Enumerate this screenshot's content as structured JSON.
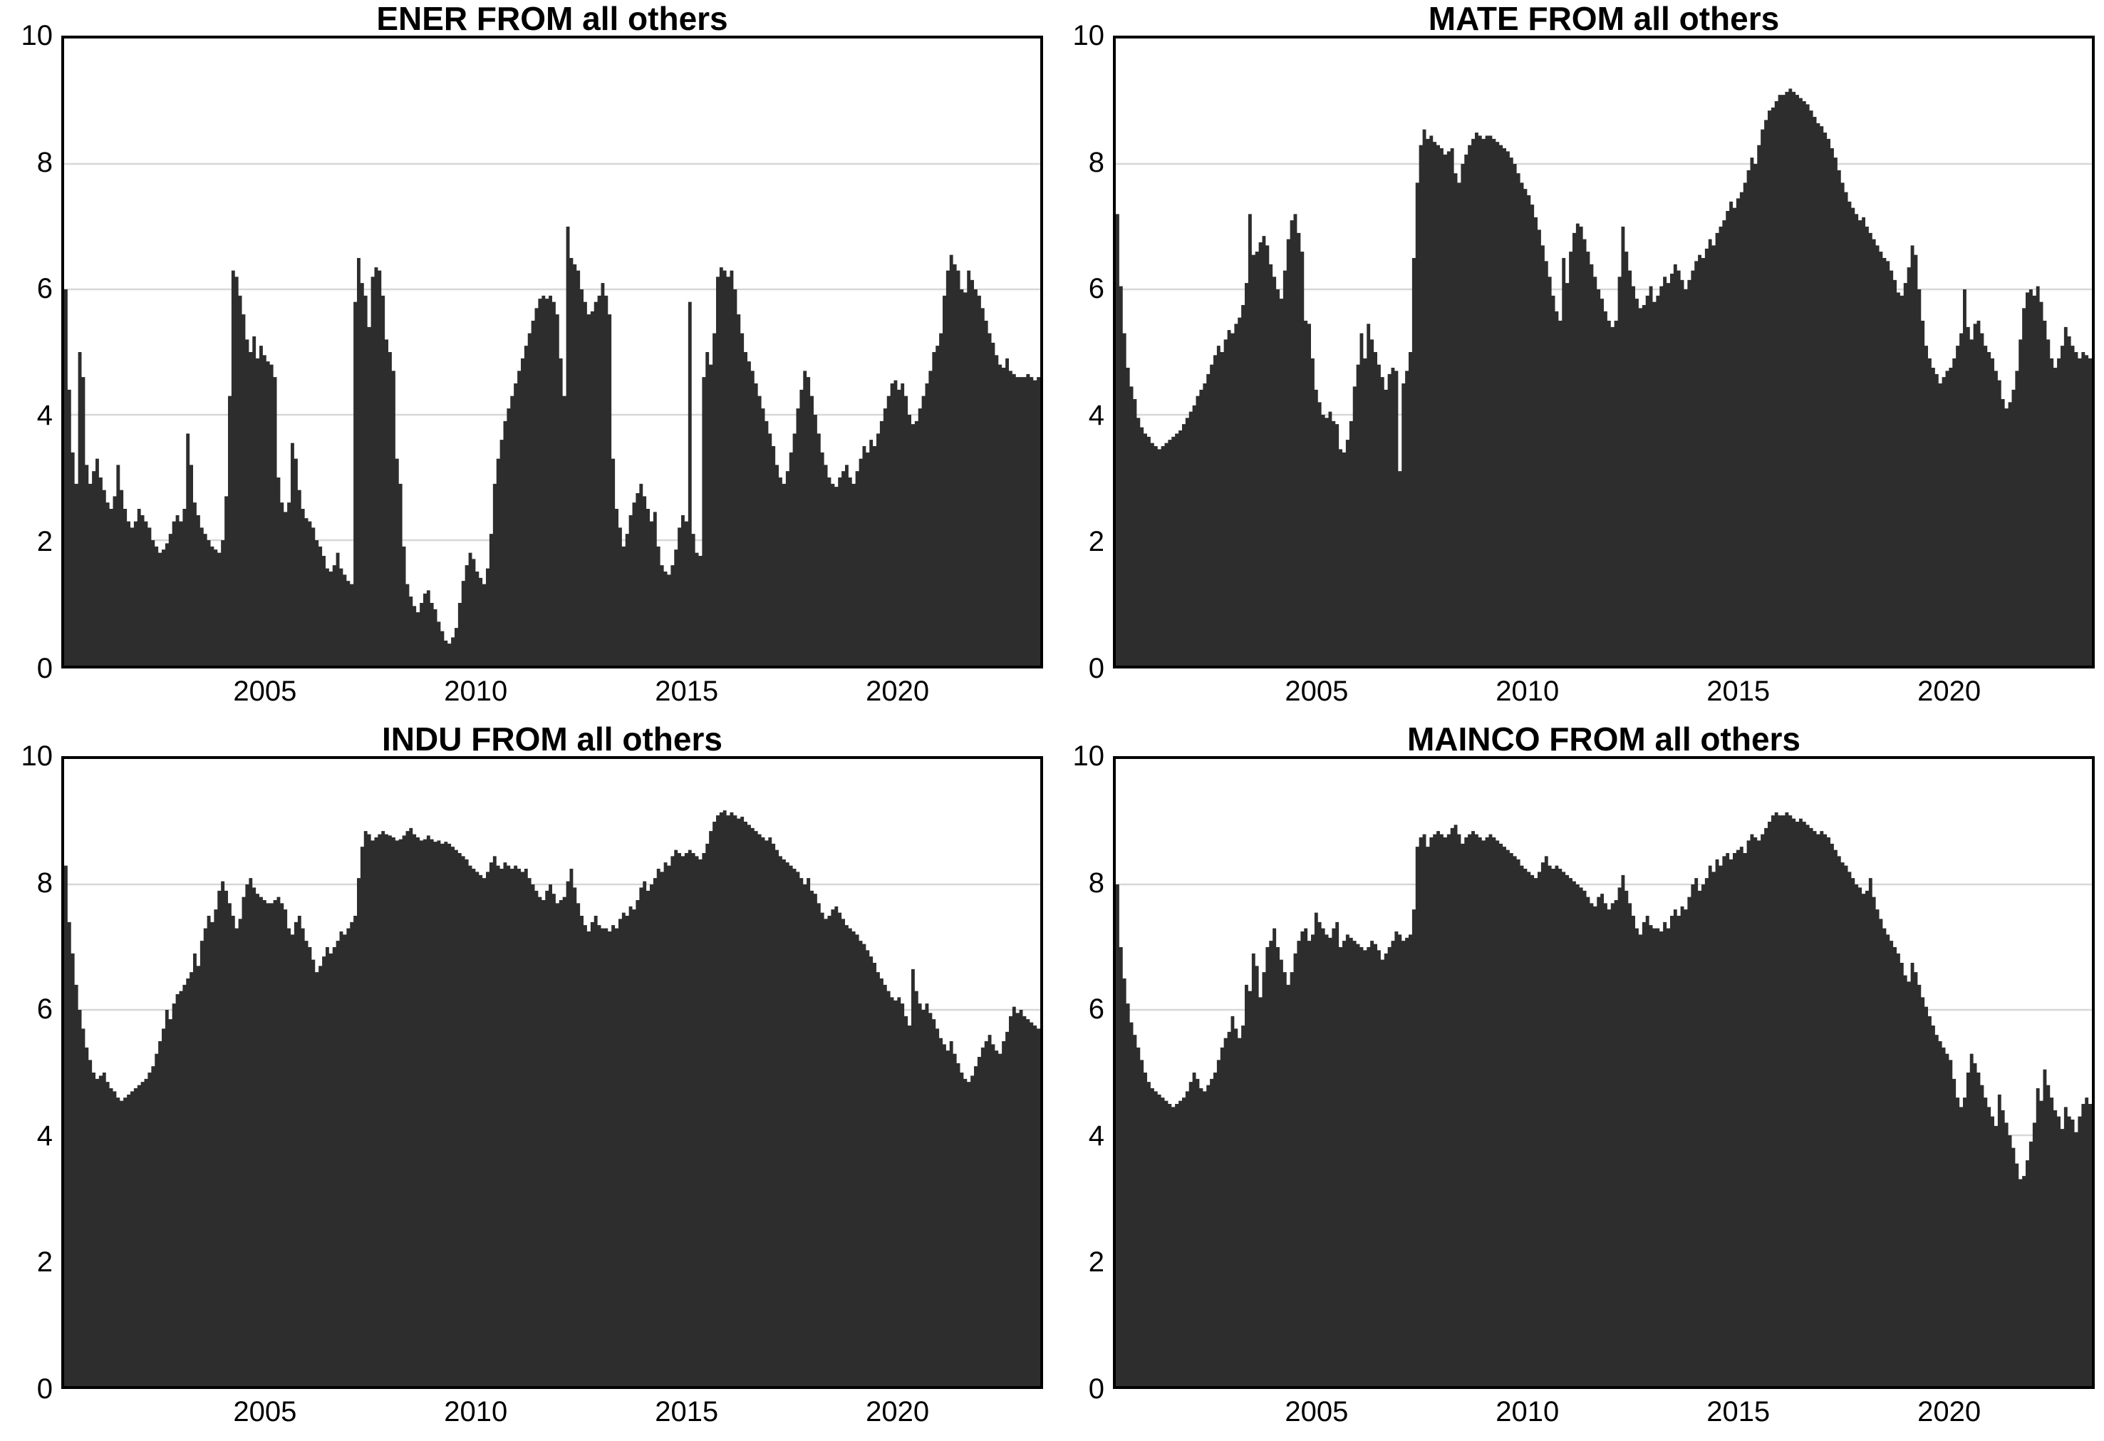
{
  "page": {
    "background": "#ffffff"
  },
  "style": {
    "series_fill": "#2d2d2d",
    "grid_color": "#d7d7d7",
    "axis_frame_color": "#000000",
    "label_color": "#000000"
  },
  "chart_data": [
    {
      "type": "area",
      "title": "ENER FROM all others",
      "xlabel": "",
      "ylabel": "",
      "ylim": [
        0,
        10
      ],
      "yticks": [
        "0",
        "2",
        "4",
        "6",
        "8",
        "10"
      ],
      "grid_values": [
        2,
        4,
        6,
        8
      ],
      "legend": "none",
      "x_unit": "year",
      "sampling": "monthly",
      "x_start": 2000.17,
      "x_end": 2023.42,
      "xticks": [
        "2005",
        "2010",
        "2015",
        "2020"
      ],
      "values": [
        6.0,
        4.4,
        3.4,
        2.9,
        5.0,
        4.6,
        3.2,
        2.9,
        3.1,
        3.3,
        3.0,
        2.8,
        2.6,
        2.5,
        2.7,
        3.2,
        2.8,
        2.5,
        2.3,
        2.2,
        2.3,
        2.5,
        2.4,
        2.3,
        2.2,
        2.0,
        1.9,
        1.8,
        1.85,
        1.95,
        2.1,
        2.3,
        2.4,
        2.3,
        2.5,
        3.7,
        3.2,
        2.6,
        2.4,
        2.2,
        2.1,
        2.0,
        1.9,
        1.85,
        1.8,
        2.0,
        2.7,
        4.3,
        6.3,
        6.2,
        5.9,
        5.6,
        5.2,
        5.0,
        5.25,
        4.9,
        5.1,
        4.95,
        4.85,
        4.8,
        4.6,
        3.0,
        2.6,
        2.45,
        2.6,
        3.55,
        3.3,
        2.8,
        2.5,
        2.35,
        2.3,
        2.2,
        2.0,
        1.9,
        1.75,
        1.55,
        1.5,
        1.6,
        1.8,
        1.55,
        1.45,
        1.35,
        1.3,
        5.8,
        6.5,
        6.1,
        5.9,
        5.4,
        6.2,
        6.35,
        6.3,
        5.9,
        5.2,
        5.0,
        4.7,
        3.3,
        2.9,
        1.9,
        1.3,
        1.1,
        0.95,
        0.85,
        1.0,
        1.15,
        1.2,
        1.0,
        0.9,
        0.7,
        0.55,
        0.4,
        0.35,
        0.45,
        0.6,
        1.0,
        1.35,
        1.6,
        1.8,
        1.7,
        1.5,
        1.4,
        1.3,
        1.55,
        2.1,
        2.9,
        3.3,
        3.6,
        3.9,
        4.1,
        4.3,
        4.5,
        4.7,
        4.9,
        5.1,
        5.3,
        5.5,
        5.7,
        5.85,
        5.9,
        5.85,
        5.9,
        5.8,
        5.6,
        4.9,
        4.3,
        7.0,
        6.5,
        6.4,
        6.3,
        6.0,
        5.8,
        5.6,
        5.65,
        5.8,
        5.9,
        6.1,
        5.9,
        5.6,
        3.3,
        2.5,
        2.2,
        1.9,
        2.1,
        2.4,
        2.6,
        2.75,
        2.9,
        2.7,
        2.5,
        2.3,
        2.45,
        1.9,
        1.6,
        1.5,
        1.45,
        1.6,
        1.85,
        2.2,
        2.4,
        2.3,
        5.8,
        2.1,
        1.8,
        1.75,
        4.6,
        5.0,
        4.8,
        5.3,
        6.2,
        6.35,
        6.3,
        6.2,
        6.3,
        6.0,
        5.6,
        5.3,
        5.0,
        4.85,
        4.7,
        4.5,
        4.3,
        4.1,
        3.9,
        3.7,
        3.5,
        3.2,
        3.0,
        2.9,
        3.1,
        3.4,
        3.7,
        4.1,
        4.4,
        4.7,
        4.6,
        4.3,
        4.0,
        3.7,
        3.4,
        3.2,
        3.0,
        2.9,
        2.85,
        3.0,
        3.1,
        3.2,
        3.0,
        2.9,
        3.1,
        3.3,
        3.5,
        3.4,
        3.6,
        3.5,
        3.7,
        3.9,
        4.1,
        4.3,
        4.5,
        4.55,
        4.4,
        4.5,
        4.3,
        4.0,
        3.85,
        3.9,
        4.1,
        4.3,
        4.5,
        4.7,
        5.0,
        5.1,
        5.3,
        5.9,
        6.3,
        6.55,
        6.4,
        6.3,
        6.0,
        5.95,
        6.3,
        6.15,
        6.0,
        5.9,
        5.7,
        5.5,
        5.3,
        5.15,
        4.95,
        4.8,
        4.75,
        4.9,
        4.7,
        4.65,
        4.6,
        4.6,
        4.6,
        4.65,
        4.6,
        4.55,
        4.6
      ]
    },
    {
      "type": "area",
      "title": "MATE FROM all others",
      "xlabel": "",
      "ylabel": "",
      "ylim": [
        0,
        10
      ],
      "yticks": [
        "0",
        "2",
        "4",
        "6",
        "8",
        "10"
      ],
      "grid_values": [
        2,
        4,
        6,
        8
      ],
      "legend": "none",
      "x_unit": "year",
      "sampling": "monthly",
      "x_start": 2000.17,
      "x_end": 2023.42,
      "xticks": [
        "2005",
        "2010",
        "2015",
        "2020"
      ],
      "values": [
        7.2,
        6.05,
        5.3,
        4.75,
        4.45,
        4.25,
        3.95,
        3.8,
        3.7,
        3.65,
        3.55,
        3.5,
        3.45,
        3.5,
        3.55,
        3.6,
        3.65,
        3.7,
        3.75,
        3.85,
        3.95,
        4.05,
        4.15,
        4.3,
        4.4,
        4.5,
        4.65,
        4.8,
        4.95,
        5.1,
        5.0,
        5.2,
        5.35,
        5.3,
        5.45,
        5.55,
        5.75,
        6.1,
        7.2,
        6.55,
        6.6,
        6.75,
        6.85,
        6.7,
        6.4,
        6.2,
        6.0,
        5.85,
        6.3,
        6.8,
        7.1,
        7.2,
        6.9,
        6.6,
        5.5,
        5.45,
        4.9,
        4.4,
        4.2,
        4.0,
        3.95,
        4.05,
        3.9,
        3.85,
        3.45,
        3.4,
        3.6,
        3.9,
        4.45,
        4.8,
        5.3,
        4.9,
        5.45,
        5.2,
        5.0,
        4.8,
        4.6,
        4.4,
        4.65,
        4.75,
        4.7,
        3.1,
        4.5,
        4.7,
        5.0,
        6.5,
        7.7,
        8.3,
        8.55,
        8.4,
        8.45,
        8.35,
        8.3,
        8.25,
        8.15,
        8.2,
        8.25,
        7.85,
        7.7,
        8.0,
        8.15,
        8.3,
        8.4,
        8.5,
        8.45,
        8.4,
        8.45,
        8.45,
        8.4,
        8.35,
        8.3,
        8.25,
        8.2,
        8.1,
        8.0,
        7.85,
        7.7,
        7.6,
        7.5,
        7.35,
        7.15,
        6.95,
        6.7,
        6.45,
        6.2,
        5.9,
        5.65,
        5.5,
        6.5,
        6.1,
        6.6,
        6.9,
        7.05,
        7.0,
        6.8,
        6.6,
        6.4,
        6.2,
        6.0,
        5.85,
        5.65,
        5.5,
        5.4,
        5.5,
        6.2,
        7.0,
        6.6,
        6.3,
        6.05,
        5.85,
        5.7,
        5.75,
        5.9,
        6.05,
        5.8,
        5.9,
        6.05,
        6.2,
        6.1,
        6.25,
        6.4,
        6.3,
        6.15,
        6.0,
        6.15,
        6.3,
        6.45,
        6.55,
        6.5,
        6.65,
        6.8,
        6.7,
        6.9,
        7.0,
        7.1,
        7.25,
        7.4,
        7.3,
        7.45,
        7.55,
        7.7,
        7.9,
        8.1,
        8.0,
        8.3,
        8.55,
        8.7,
        8.85,
        8.9,
        9.0,
        9.1,
        9.1,
        9.15,
        9.2,
        9.15,
        9.1,
        9.05,
        9.0,
        8.95,
        8.85,
        8.75,
        8.65,
        8.6,
        8.5,
        8.4,
        8.25,
        8.1,
        7.9,
        7.7,
        7.55,
        7.4,
        7.3,
        7.2,
        7.1,
        7.15,
        7.0,
        6.9,
        6.8,
        6.7,
        6.6,
        6.5,
        6.45,
        6.3,
        6.15,
        5.95,
        5.9,
        6.1,
        6.35,
        6.7,
        6.55,
        6.0,
        5.5,
        5.1,
        4.9,
        4.75,
        4.65,
        4.5,
        4.6,
        4.7,
        4.75,
        4.9,
        5.1,
        5.3,
        6.0,
        5.4,
        5.2,
        5.45,
        5.5,
        5.3,
        5.1,
        5.0,
        4.9,
        4.7,
        4.55,
        4.25,
        4.1,
        4.2,
        4.4,
        4.7,
        5.2,
        5.7,
        5.95,
        6.0,
        5.9,
        6.05,
        5.8,
        5.5,
        5.2,
        4.9,
        4.75,
        4.9,
        5.1,
        5.4,
        5.25,
        5.1,
        5.0,
        4.9,
        5.0,
        4.95,
        4.9
      ]
    },
    {
      "type": "area",
      "title": "INDU FROM all others",
      "xlabel": "",
      "ylabel": "",
      "ylim": [
        0,
        10
      ],
      "yticks": [
        "0",
        "2",
        "4",
        "6",
        "8",
        "10"
      ],
      "grid_values": [
        2,
        4,
        6,
        8
      ],
      "legend": "none",
      "x_unit": "year",
      "sampling": "monthly",
      "x_start": 2000.17,
      "x_end": 2023.42,
      "xticks": [
        "2005",
        "2010",
        "2015",
        "2020"
      ],
      "values": [
        8.3,
        7.4,
        6.9,
        6.4,
        6.0,
        5.7,
        5.4,
        5.2,
        5.0,
        4.9,
        4.95,
        5.0,
        4.85,
        4.75,
        4.7,
        4.6,
        4.55,
        4.6,
        4.65,
        4.7,
        4.75,
        4.8,
        4.85,
        4.9,
        5.0,
        5.1,
        5.3,
        5.5,
        5.7,
        6.0,
        5.85,
        6.1,
        6.25,
        6.3,
        6.4,
        6.5,
        6.6,
        6.9,
        6.7,
        7.1,
        7.3,
        7.5,
        7.4,
        7.6,
        7.9,
        8.05,
        7.9,
        7.7,
        7.5,
        7.3,
        7.45,
        7.8,
        8.0,
        8.1,
        7.95,
        7.85,
        7.8,
        7.75,
        7.7,
        7.7,
        7.75,
        7.8,
        7.7,
        7.6,
        7.3,
        7.2,
        7.4,
        7.5,
        7.3,
        7.1,
        7.0,
        6.8,
        6.6,
        6.7,
        6.85,
        7.0,
        6.9,
        7.0,
        7.1,
        7.25,
        7.2,
        7.3,
        7.4,
        7.5,
        8.1,
        8.6,
        8.85,
        8.8,
        8.7,
        8.75,
        8.8,
        8.85,
        8.8,
        8.78,
        8.75,
        8.7,
        8.72,
        8.78,
        8.85,
        8.9,
        8.8,
        8.75,
        8.7,
        8.72,
        8.78,
        8.72,
        8.68,
        8.7,
        8.65,
        8.68,
        8.65,
        8.6,
        8.55,
        8.5,
        8.45,
        8.4,
        8.3,
        8.25,
        8.2,
        8.15,
        8.1,
        8.2,
        8.35,
        8.45,
        8.3,
        8.25,
        8.35,
        8.3,
        8.25,
        8.3,
        8.25,
        8.2,
        8.25,
        8.1,
        8.0,
        7.9,
        7.8,
        7.75,
        7.9,
        8.0,
        7.85,
        7.7,
        7.75,
        7.8,
        8.05,
        8.25,
        7.95,
        7.7,
        7.5,
        7.35,
        7.25,
        7.4,
        7.5,
        7.35,
        7.3,
        7.3,
        7.25,
        7.35,
        7.3,
        7.45,
        7.55,
        7.5,
        7.65,
        7.6,
        7.75,
        7.95,
        8.05,
        7.9,
        8.0,
        8.1,
        8.25,
        8.2,
        8.35,
        8.3,
        8.45,
        8.55,
        8.5,
        8.45,
        8.5,
        8.55,
        8.5,
        8.45,
        8.4,
        8.5,
        8.65,
        8.85,
        9.0,
        9.1,
        9.15,
        9.18,
        9.1,
        9.15,
        9.1,
        9.05,
        9.08,
        9.0,
        8.95,
        8.9,
        8.85,
        8.8,
        8.75,
        8.7,
        8.75,
        8.65,
        8.55,
        8.45,
        8.4,
        8.35,
        8.3,
        8.25,
        8.2,
        8.1,
        8.0,
        8.1,
        7.9,
        7.85,
        7.7,
        7.55,
        7.45,
        7.5,
        7.6,
        7.65,
        7.55,
        7.45,
        7.35,
        7.3,
        7.25,
        7.2,
        7.1,
        7.05,
        6.95,
        6.85,
        6.75,
        6.6,
        6.5,
        6.4,
        6.3,
        6.2,
        6.15,
        6.2,
        6.1,
        5.9,
        5.75,
        6.65,
        6.3,
        6.1,
        6.0,
        6.1,
        5.95,
        5.85,
        5.7,
        5.55,
        5.45,
        5.35,
        5.5,
        5.3,
        5.15,
        5.0,
        4.9,
        4.85,
        4.95,
        5.1,
        5.25,
        5.4,
        5.5,
        5.6,
        5.45,
        5.35,
        5.3,
        5.5,
        5.65,
        5.9,
        6.05,
        5.95,
        6.0,
        5.9,
        5.85,
        5.8,
        5.75,
        5.7
      ]
    },
    {
      "type": "area",
      "title": "MAINCO FROM all others",
      "xlabel": "",
      "ylabel": "",
      "ylim": [
        0,
        10
      ],
      "yticks": [
        "0",
        "2",
        "4",
        "6",
        "8",
        "10"
      ],
      "grid_values": [
        2,
        4,
        6,
        8
      ],
      "legend": "none",
      "x_unit": "year",
      "sampling": "monthly",
      "x_start": 2000.17,
      "x_end": 2023.42,
      "xticks": [
        "2005",
        "2010",
        "2015",
        "2020"
      ],
      "values": [
        8.0,
        7.0,
        6.5,
        6.1,
        5.8,
        5.6,
        5.4,
        5.2,
        5.0,
        4.85,
        4.75,
        4.7,
        4.65,
        4.6,
        4.55,
        4.5,
        4.45,
        4.5,
        4.55,
        4.6,
        4.7,
        4.85,
        5.0,
        4.9,
        4.75,
        4.7,
        4.8,
        4.9,
        5.0,
        5.2,
        5.4,
        5.55,
        5.65,
        5.9,
        5.7,
        5.55,
        5.75,
        6.4,
        6.3,
        6.9,
        6.7,
        6.2,
        6.6,
        7.0,
        7.1,
        7.3,
        7.0,
        6.8,
        6.6,
        6.4,
        6.6,
        6.9,
        7.1,
        7.25,
        7.3,
        7.1,
        7.2,
        7.55,
        7.4,
        7.3,
        7.2,
        7.15,
        7.3,
        7.4,
        7.0,
        7.1,
        7.2,
        7.15,
        7.1,
        7.05,
        7.0,
        6.95,
        7.0,
        7.1,
        7.05,
        6.95,
        6.8,
        6.9,
        7.0,
        7.1,
        7.25,
        7.2,
        7.1,
        7.15,
        7.2,
        7.6,
        8.6,
        8.75,
        8.8,
        8.6,
        8.75,
        8.8,
        8.85,
        8.8,
        8.75,
        8.8,
        8.9,
        8.95,
        8.8,
        8.65,
        8.75,
        8.8,
        8.85,
        8.8,
        8.75,
        8.7,
        8.75,
        8.8,
        8.75,
        8.7,
        8.65,
        8.6,
        8.55,
        8.5,
        8.45,
        8.4,
        8.3,
        8.25,
        8.2,
        8.15,
        8.1,
        8.2,
        8.35,
        8.45,
        8.3,
        8.25,
        8.3,
        8.25,
        8.2,
        8.15,
        8.1,
        8.05,
        8.0,
        7.95,
        7.9,
        7.8,
        7.7,
        7.65,
        7.8,
        7.85,
        7.7,
        7.6,
        7.7,
        7.75,
        7.95,
        8.15,
        7.9,
        7.7,
        7.5,
        7.3,
        7.2,
        7.4,
        7.5,
        7.35,
        7.3,
        7.3,
        7.25,
        7.4,
        7.3,
        7.5,
        7.6,
        7.5,
        7.65,
        7.6,
        7.8,
        8.0,
        8.1,
        7.9,
        8.0,
        8.1,
        8.3,
        8.2,
        8.4,
        8.3,
        8.45,
        8.5,
        8.4,
        8.5,
        8.55,
        8.6,
        8.5,
        8.7,
        8.8,
        8.75,
        8.7,
        8.8,
        8.9,
        9.0,
        9.1,
        9.15,
        9.1,
        9.1,
        9.15,
        9.1,
        9.05,
        9.0,
        9.05,
        9.0,
        8.95,
        8.9,
        8.85,
        8.8,
        8.85,
        8.8,
        8.75,
        8.65,
        8.55,
        8.45,
        8.35,
        8.3,
        8.2,
        8.1,
        8.0,
        7.95,
        7.85,
        7.9,
        8.1,
        7.8,
        7.6,
        7.45,
        7.3,
        7.2,
        7.1,
        7.0,
        6.9,
        6.75,
        6.55,
        6.45,
        6.75,
        6.6,
        6.4,
        6.2,
        6.05,
        5.9,
        5.75,
        5.6,
        5.5,
        5.4,
        5.3,
        5.2,
        4.9,
        4.6,
        4.45,
        4.6,
        5.0,
        5.3,
        5.15,
        5.0,
        4.8,
        4.6,
        4.45,
        4.3,
        4.15,
        4.65,
        4.4,
        4.2,
        4.0,
        3.8,
        3.55,
        3.3,
        3.35,
        3.6,
        3.9,
        4.2,
        4.75,
        4.55,
        5.05,
        4.8,
        4.6,
        4.4,
        4.3,
        4.1,
        4.45,
        4.3,
        4.25,
        4.05,
        4.3,
        4.5,
        4.6,
        4.5
      ]
    }
  ]
}
